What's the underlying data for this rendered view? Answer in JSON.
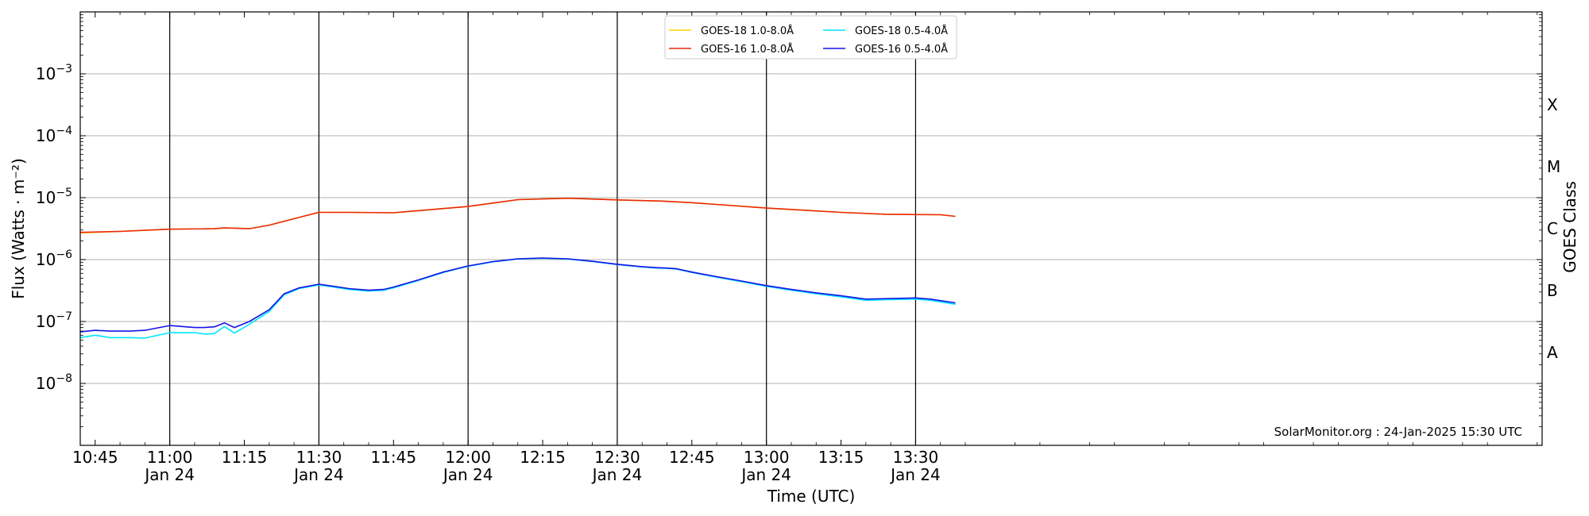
{
  "chart_data": {
    "type": "line",
    "title": "",
    "xlabel": "Time (UTC)",
    "ylabel": "Flux (Watts · m⁻²)",
    "ylabel_right": "GOES Class",
    "yscale": "log",
    "ylim": [
      1e-09,
      0.01
    ],
    "xlim_minutes": [
      642,
      936
    ],
    "y_ticks": [
      {
        "value": 0.001,
        "base": "10",
        "exp": "−3"
      },
      {
        "value": 0.0001,
        "base": "10",
        "exp": "−4"
      },
      {
        "value": 1e-05,
        "base": "10",
        "exp": "−5"
      },
      {
        "value": 1e-06,
        "base": "10",
        "exp": "−6"
      },
      {
        "value": 1e-07,
        "base": "10",
        "exp": "−7"
      },
      {
        "value": 1e-08,
        "base": "10",
        "exp": "−8"
      }
    ],
    "x_ticks": [
      {
        "minute": 645,
        "label": "10:45",
        "sub": ""
      },
      {
        "minute": 660,
        "label": "11:00",
        "sub": "Jan 24"
      },
      {
        "minute": 675,
        "label": "11:15",
        "sub": ""
      },
      {
        "minute": 690,
        "label": "11:30",
        "sub": "Jan 24"
      },
      {
        "minute": 705,
        "label": "11:45",
        "sub": ""
      },
      {
        "minute": 720,
        "label": "12:00",
        "sub": "Jan 24"
      },
      {
        "minute": 735,
        "label": "12:15",
        "sub": ""
      },
      {
        "minute": 750,
        "label": "12:30",
        "sub": "Jan 24"
      },
      {
        "minute": 765,
        "label": "12:45",
        "sub": ""
      },
      {
        "minute": 780,
        "label": "13:00",
        "sub": "Jan 24"
      },
      {
        "minute": 795,
        "label": "13:15",
        "sub": ""
      },
      {
        "minute": 810,
        "label": "13:30",
        "sub": "Jan 24"
      }
    ],
    "class_labels": [
      {
        "label": "X",
        "value": 0.000316
      },
      {
        "label": "M",
        "value": 3.16e-05
      },
      {
        "label": "C",
        "value": 3.16e-06
      },
      {
        "label": "B",
        "value": 3.16e-07
      },
      {
        "label": "A",
        "value": 3.16e-08
      }
    ],
    "grid": "horizontal at decades; vertical at day-labelled ticks",
    "legend": "top-center",
    "annotation": "SolarMonitor.org : 24-Jan-2025 15:30 UTC",
    "series": [
      {
        "name": "GOES-18 1.0-8.0Å",
        "color": "#ffd700",
        "x": [
          642,
          650,
          660,
          669,
          671,
          676,
          680,
          686,
          690,
          696,
          705,
          720,
          730,
          740,
          750,
          759,
          765,
          780,
          795,
          804,
          815,
          818
        ],
        "values": [
          2.7e-06,
          2.85e-06,
          3.1e-06,
          3.15e-06,
          3.25e-06,
          3.15e-06,
          3.6e-06,
          4.8e-06,
          5.8e-06,
          5.8e-06,
          5.7e-06,
          7.2e-06,
          9.3e-06,
          9.8e-06,
          9.2e-06,
          8.8e-06,
          8.3e-06,
          6.8e-06,
          5.8e-06,
          5.4e-06,
          5.3e-06,
          5e-06
        ]
      },
      {
        "name": "GOES-16 1.0-8.0Å",
        "color": "#e8290b",
        "x": [
          642,
          650,
          660,
          669,
          671,
          676,
          680,
          686,
          690,
          696,
          705,
          720,
          730,
          740,
          750,
          759,
          765,
          780,
          795,
          804,
          815,
          818
        ],
        "values": [
          2.75e-06,
          2.85e-06,
          3.1e-06,
          3.15e-06,
          3.25e-06,
          3.15e-06,
          3.6e-06,
          4.8e-06,
          5.8e-06,
          5.8e-06,
          5.7e-06,
          7.2e-06,
          9.3e-06,
          9.8e-06,
          9.2e-06,
          8.8e-06,
          8.3e-06,
          6.8e-06,
          5.8e-06,
          5.4e-06,
          5.3e-06,
          5e-06
        ]
      },
      {
        "name": "GOES-18 0.5-4.0Å",
        "color": "#00e5ff",
        "x": [
          642,
          645,
          648,
          652,
          655,
          660,
          665,
          667,
          668,
          669,
          671,
          673,
          676,
          680,
          683,
          686,
          690,
          693,
          696,
          700,
          703,
          705,
          710,
          715,
          720,
          725,
          730,
          735,
          740,
          745,
          750,
          755,
          758,
          760,
          762,
          765,
          770,
          775,
          780,
          785,
          790,
          795,
          800,
          805,
          810,
          813,
          818
        ],
        "values": [
          5.5e-08,
          6e-08,
          5.5e-08,
          5.5e-08,
          5.4e-08,
          6.6e-08,
          6.6e-08,
          6.3e-08,
          6.3e-08,
          6.4e-08,
          8.3e-08,
          6.5e-08,
          9e-08,
          1.45e-07,
          2.7e-07,
          3.4e-07,
          3.9e-07,
          3.6e-07,
          3.3e-07,
          3.1e-07,
          3.2e-07,
          3.5e-07,
          4.6e-07,
          6.2e-07,
          7.8e-07,
          9.2e-07,
          1.02e-06,
          1.05e-06,
          1.02e-06,
          9.3e-07,
          8.3e-07,
          7.6e-07,
          7.3e-07,
          7.2e-07,
          7e-07,
          6.2e-07,
          5.2e-07,
          4.4e-07,
          3.7e-07,
          3.2e-07,
          2.8e-07,
          2.5e-07,
          2.2e-07,
          2.25e-07,
          2.3e-07,
          2.2e-07,
          1.9e-07
        ]
      },
      {
        "name": "GOES-16 0.5-4.0Å",
        "color": "#1414e6",
        "x": [
          642,
          645,
          648,
          652,
          655,
          660,
          665,
          667,
          668,
          669,
          671,
          673,
          676,
          680,
          683,
          686,
          690,
          693,
          696,
          700,
          703,
          705,
          710,
          715,
          720,
          725,
          730,
          735,
          740,
          745,
          750,
          755,
          758,
          760,
          762,
          765,
          770,
          775,
          780,
          785,
          790,
          795,
          800,
          805,
          810,
          813,
          818
        ],
        "values": [
          6.8e-08,
          7.2e-08,
          7e-08,
          7e-08,
          7.2e-08,
          8.6e-08,
          8e-08,
          8e-08,
          8.1e-08,
          8.2e-08,
          9.5e-08,
          8e-08,
          1e-07,
          1.55e-07,
          2.8e-07,
          3.5e-07,
          4e-07,
          3.7e-07,
          3.4e-07,
          3.2e-07,
          3.3e-07,
          3.6e-07,
          4.7e-07,
          6.3e-07,
          7.9e-07,
          9.3e-07,
          1.03e-06,
          1.06e-06,
          1.03e-06,
          9.4e-07,
          8.4e-07,
          7.7e-07,
          7.4e-07,
          7.3e-07,
          7.1e-07,
          6.3e-07,
          5.3e-07,
          4.5e-07,
          3.8e-07,
          3.3e-07,
          2.9e-07,
          2.6e-07,
          2.3e-07,
          2.35e-07,
          2.4e-07,
          2.3e-07,
          2e-07
        ]
      }
    ]
  }
}
